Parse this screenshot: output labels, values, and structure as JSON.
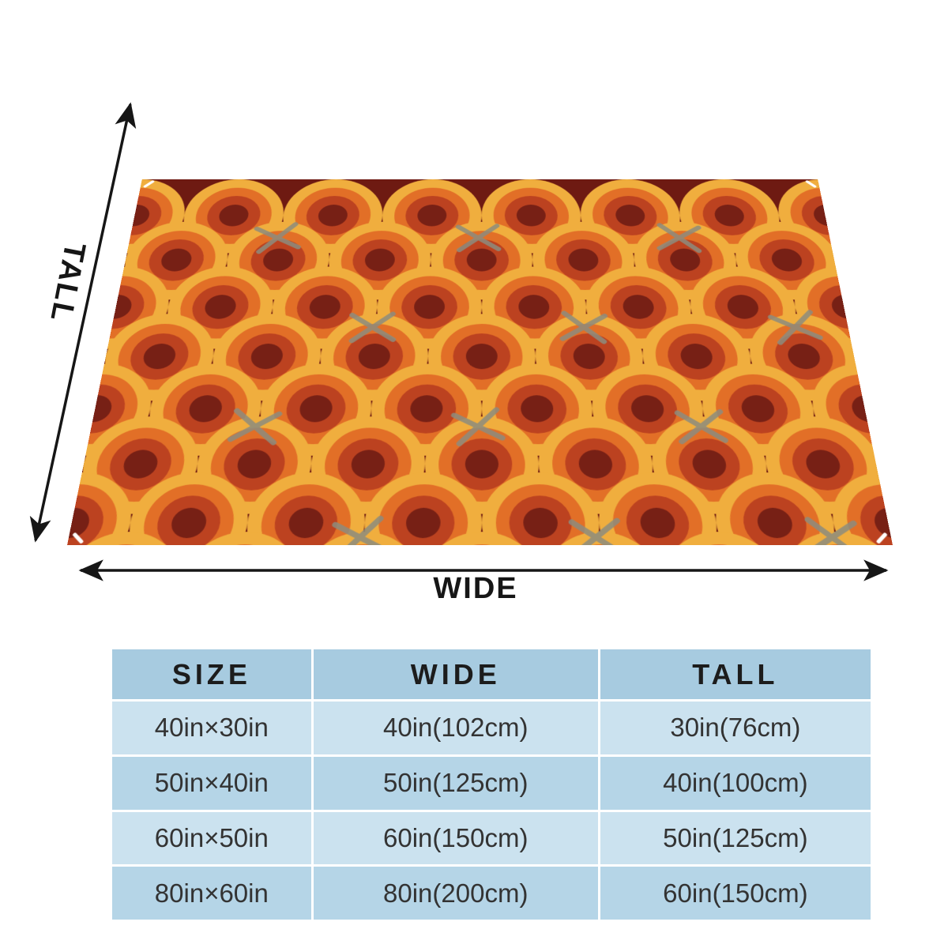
{
  "page": {
    "background": "#ffffff"
  },
  "blanket": {
    "description": "blanket with retro orange fish-scale / rainbow scallop pattern shown in perspective",
    "colors": {
      "background": "#6E1A12",
      "band_yellow": "#F0AE3E",
      "band_orange": "#E26F27",
      "band_red": "#BC4220",
      "center": "#772015",
      "stitch": "#8D8C7E",
      "corner_thread": "#FFFFFF"
    }
  },
  "dimensions": {
    "tall_label": "TALL",
    "wide_label": "WIDE",
    "arrow_color": "#161616"
  },
  "size_table": {
    "headers": [
      "SIZE",
      "WIDE",
      "TALL"
    ],
    "rows": [
      [
        "40in×30in",
        "40in(102cm)",
        "30in(76cm)"
      ],
      [
        "50in×40in",
        "50in(125cm)",
        "40in(100cm)"
      ],
      [
        "60in×50in",
        "60in(150cm)",
        "50in(125cm)"
      ],
      [
        "80in×60in",
        "80in(200cm)",
        "60in(150cm)"
      ]
    ],
    "colors": {
      "header_bg": "#A7CBE0",
      "row_odd_bg": "#CBE2EF",
      "row_even_bg": "#B5D5E7",
      "border": "#FFFFFF",
      "text": "#333333"
    }
  }
}
